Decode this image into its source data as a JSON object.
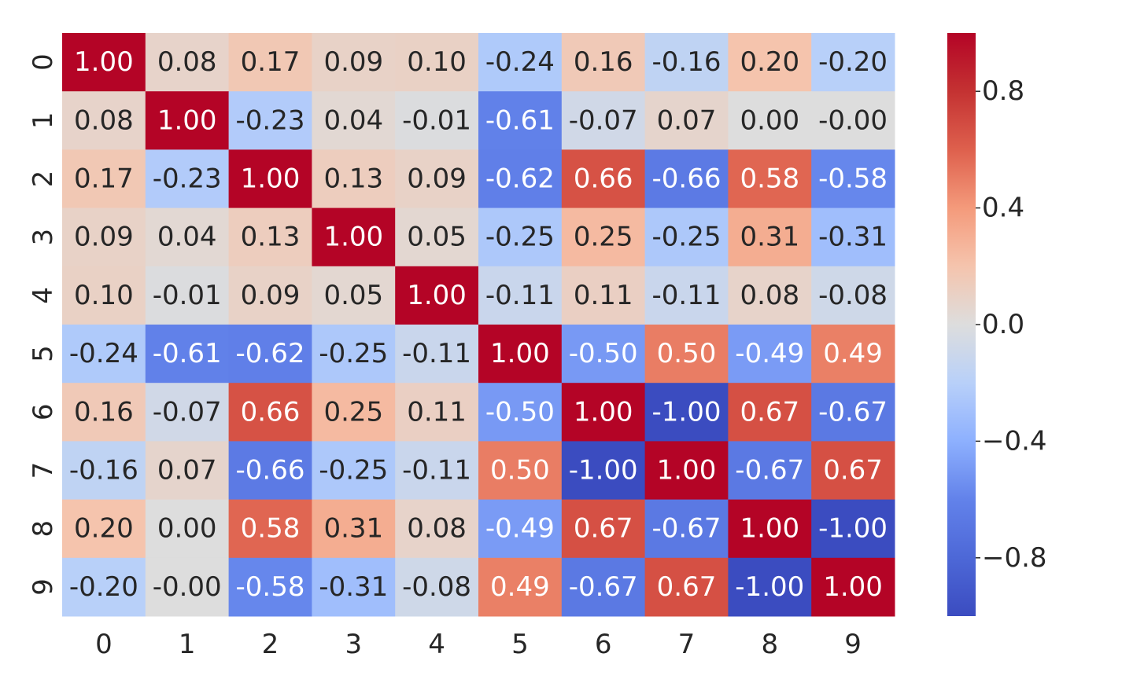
{
  "chart_data": {
    "type": "heatmap",
    "x_labels": [
      "0",
      "1",
      "2",
      "3",
      "4",
      "5",
      "6",
      "7",
      "8",
      "9"
    ],
    "y_labels": [
      "0",
      "1",
      "2",
      "3",
      "4",
      "5",
      "6",
      "7",
      "8",
      "9"
    ],
    "values": [
      [
        1.0,
        0.08,
        0.17,
        0.09,
        0.1,
        -0.24,
        0.16,
        -0.16,
        0.2,
        -0.2
      ],
      [
        0.08,
        1.0,
        -0.23,
        0.04,
        -0.01,
        -0.61,
        -0.07,
        0.07,
        0.0,
        -0.0
      ],
      [
        0.17,
        -0.23,
        1.0,
        0.13,
        0.09,
        -0.62,
        0.66,
        -0.66,
        0.58,
        -0.58
      ],
      [
        0.09,
        0.04,
        0.13,
        1.0,
        0.05,
        -0.25,
        0.25,
        -0.25,
        0.31,
        -0.31
      ],
      [
        0.1,
        -0.01,
        0.09,
        0.05,
        1.0,
        -0.11,
        0.11,
        -0.11,
        0.08,
        -0.08
      ],
      [
        -0.24,
        -0.61,
        -0.62,
        -0.25,
        -0.11,
        1.0,
        -0.5,
        0.5,
        -0.49,
        0.49
      ],
      [
        0.16,
        -0.07,
        0.66,
        0.25,
        0.11,
        -0.5,
        1.0,
        -1.0,
        0.67,
        -0.67
      ],
      [
        -0.16,
        0.07,
        -0.66,
        -0.25,
        -0.11,
        0.5,
        -1.0,
        1.0,
        -0.67,
        0.67
      ],
      [
        0.2,
        0.0,
        0.58,
        0.31,
        0.08,
        -0.49,
        0.67,
        -0.67,
        1.0,
        -1.0
      ],
      [
        -0.2,
        -0.0,
        -0.58,
        -0.31,
        -0.08,
        0.49,
        -0.67,
        0.67,
        -1.0,
        1.0
      ]
    ],
    "cell_labels": [
      [
        "1.00",
        "0.08",
        "0.17",
        "0.09",
        "0.10",
        "-0.24",
        "0.16",
        "-0.16",
        "0.20",
        "-0.20"
      ],
      [
        "0.08",
        "1.00",
        "-0.23",
        "0.04",
        "-0.01",
        "-0.61",
        "-0.07",
        "0.07",
        "0.00",
        "-0.00"
      ],
      [
        "0.17",
        "-0.23",
        "1.00",
        "0.13",
        "0.09",
        "-0.62",
        "0.66",
        "-0.66",
        "0.58",
        "-0.58"
      ],
      [
        "0.09",
        "0.04",
        "0.13",
        "1.00",
        "0.05",
        "-0.25",
        "0.25",
        "-0.25",
        "0.31",
        "-0.31"
      ],
      [
        "0.10",
        "-0.01",
        "0.09",
        "0.05",
        "1.00",
        "-0.11",
        "0.11",
        "-0.11",
        "0.08",
        "-0.08"
      ],
      [
        "-0.24",
        "-0.61",
        "-0.62",
        "-0.25",
        "-0.11",
        "1.00",
        "-0.50",
        "0.50",
        "-0.49",
        "0.49"
      ],
      [
        "0.16",
        "-0.07",
        "0.66",
        "0.25",
        "0.11",
        "-0.50",
        "1.00",
        "-1.00",
        "0.67",
        "-0.67"
      ],
      [
        "-0.16",
        "0.07",
        "-0.66",
        "-0.25",
        "-0.11",
        "0.50",
        "-1.00",
        "1.00",
        "-0.67",
        "0.67"
      ],
      [
        "0.20",
        "0.00",
        "0.58",
        "0.31",
        "0.08",
        "-0.49",
        "0.67",
        "-0.67",
        "1.00",
        "-1.00"
      ],
      [
        "-0.20",
        "-0.00",
        "-0.58",
        "-0.31",
        "-0.08",
        "0.49",
        "-0.67",
        "0.67",
        "-1.00",
        "1.00"
      ]
    ],
    "colormap": "coolwarm",
    "vmin": -1.0,
    "vmax": 1.0,
    "colorbar_ticks": [
      0.8,
      0.4,
      0.0,
      -0.4,
      -0.8
    ],
    "colorbar_tick_labels": [
      "0.8",
      "0.4",
      "0.0",
      "−0.4",
      "−0.8"
    ],
    "title": "",
    "xlabel": "",
    "ylabel": "",
    "grid": false
  }
}
